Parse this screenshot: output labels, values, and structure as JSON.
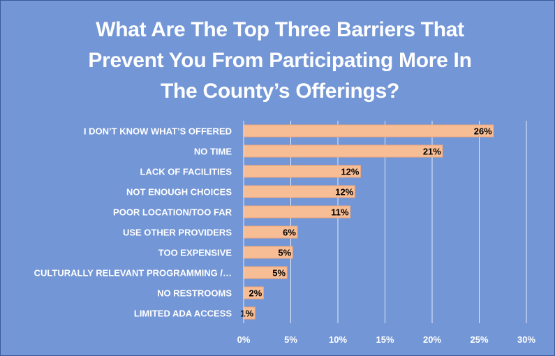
{
  "colors": {
    "background": "#7396d6",
    "bar": "#f7bd95",
    "bar_stroke": "#f3a878",
    "grid": "#ffffff"
  },
  "chart_data": {
    "type": "bar",
    "orientation": "horizontal",
    "title_lines": [
      "What Are The Top Three Barriers That",
      "Prevent You From Participating More In",
      "The County’s Offerings?"
    ],
    "categories": [
      "I DON’T KNOW WHAT’S OFFERED",
      "NO TIME",
      "LACK OF FACILITIES",
      "NOT ENOUGH CHOICES",
      "POOR LOCATION/TOO FAR",
      "USE OTHER PROVIDERS",
      "TOO EXPENSIVE",
      "CULTURALLY RELEVANT PROGRAMMING /…",
      "NO RESTROOMS",
      "LIMITED ADA ACCESS"
    ],
    "values": [
      26.5,
      21.1,
      12.4,
      11.8,
      11.3,
      5.7,
      5.2,
      4.6,
      2.1,
      1.2
    ],
    "value_labels": [
      "26%",
      "21%",
      "12%",
      "12%",
      "11%",
      "6%",
      "5%",
      "5%",
      "2%",
      "1%"
    ],
    "xlim": [
      0,
      30
    ],
    "x_ticks": [
      0,
      5,
      10,
      15,
      20,
      25,
      30
    ],
    "x_tick_labels": [
      "0%",
      "5%",
      "10%",
      "15%",
      "20%",
      "25%",
      "30%"
    ],
    "grid": true,
    "legend": "none"
  }
}
